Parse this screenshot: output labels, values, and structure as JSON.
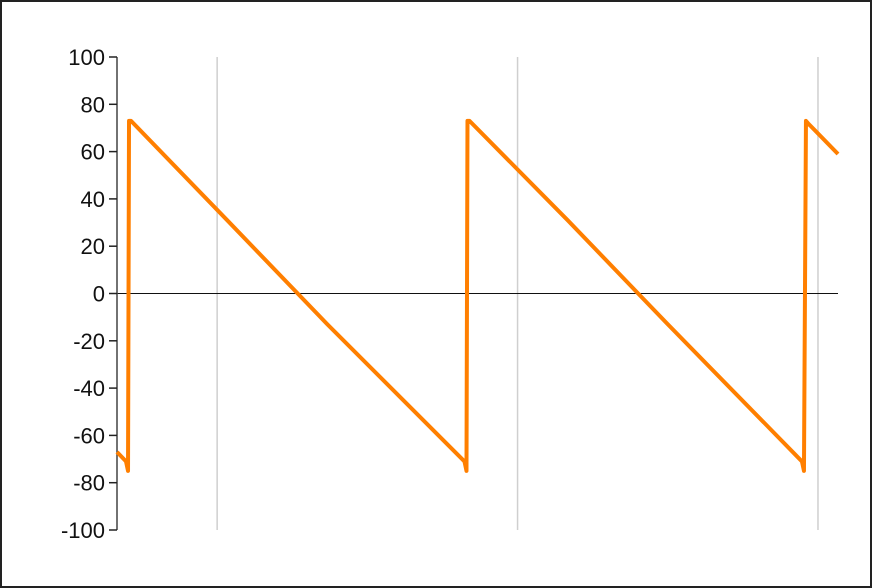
{
  "chart_data": {
    "type": "line",
    "title": "",
    "xlabel": "",
    "ylabel": "",
    "ylim": [
      -100,
      100
    ],
    "xlim": [
      0,
      7.2
    ],
    "yticks": [
      100,
      80,
      60,
      40,
      20,
      0,
      -20,
      -40,
      -60,
      -80,
      -100
    ],
    "ytick_labels": [
      "100",
      "80",
      "60",
      "40",
      "20",
      "0",
      "-20",
      "-40",
      "-60",
      "-80",
      "-100"
    ],
    "x_gridlines": [
      1,
      4,
      7
    ],
    "grid": "vertical only",
    "zero_line": true,
    "legend": "none",
    "series": [
      {
        "color": "#ff7f00",
        "x": [
          0.0,
          0.09,
          0.11,
          0.12,
          0.14,
          1.1,
          2.1,
          3.47,
          3.49,
          3.5,
          3.52,
          4.5,
          5.5,
          6.84,
          6.86,
          6.88,
          6.9,
          7.2
        ],
        "y": [
          -67,
          -71,
          -75,
          73,
          73,
          31,
          -13,
          -71,
          -75,
          73,
          73,
          31,
          -13,
          -71,
          -75,
          73,
          72,
          59
        ]
      }
    ]
  }
}
